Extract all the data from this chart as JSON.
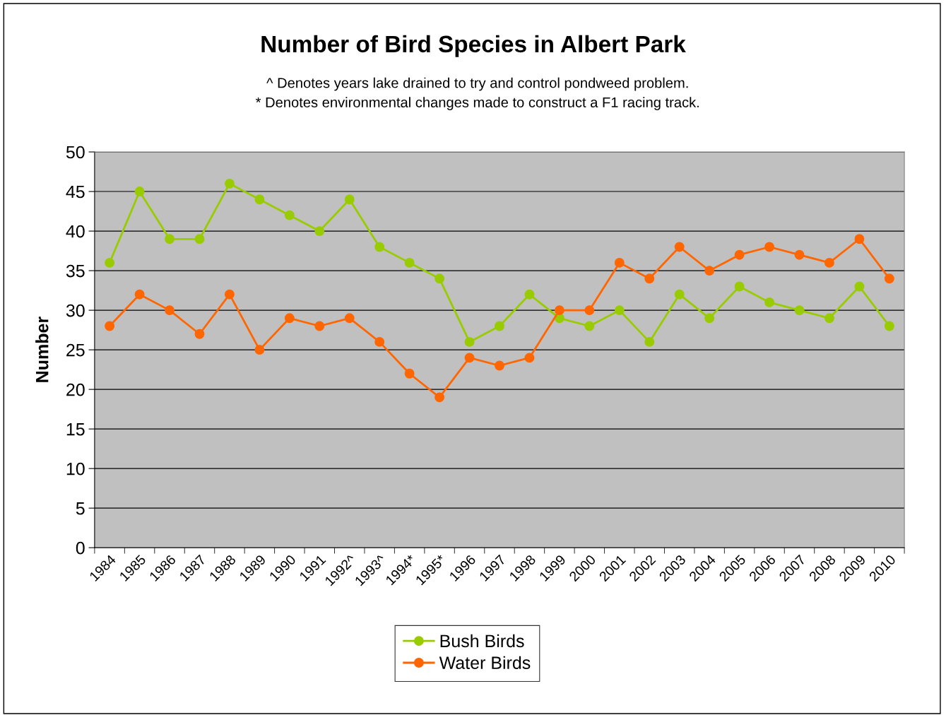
{
  "chart_data": {
    "type": "line",
    "title": "Number of Bird Species in Albert Park",
    "subtitle": "^ Denotes years lake drained to try and control pondweed problem.\n* Denotes environmental changes made to construct a F1 racing track.",
    "ylabel": "Number",
    "categories": [
      "1984",
      "1985",
      "1986",
      "1987",
      "1988",
      "1989",
      "1990",
      "1991",
      "1992^",
      "1993^",
      "1994*",
      "1995*",
      "1996",
      "1997",
      "1998",
      "1999",
      "2000",
      "2001",
      "2002",
      "2003",
      "2004",
      "2005",
      "2006",
      "2007",
      "2008",
      "2009",
      "2010"
    ],
    "series": [
      {
        "name": "Bush Birds",
        "color": "#99cc00",
        "values": [
          36,
          45,
          39,
          39,
          46,
          44,
          42,
          40,
          44,
          38,
          36,
          34,
          26,
          28,
          32,
          29,
          28,
          30,
          26,
          32,
          29,
          33,
          31,
          30,
          29,
          33,
          28
        ]
      },
      {
        "name": "Water Birds",
        "color": "#ff6600",
        "values": [
          28,
          32,
          30,
          27,
          32,
          25,
          29,
          28,
          29,
          26,
          22,
          19,
          24,
          23,
          24,
          30,
          30,
          36,
          34,
          38,
          35,
          37,
          38,
          37,
          36,
          39,
          34
        ]
      }
    ],
    "ylim": [
      0,
      50
    ],
    "yticks": [
      0,
      5,
      10,
      15,
      20,
      25,
      30,
      35,
      40,
      45,
      50
    ],
    "grid": "y",
    "legend": "bottom",
    "marker": "circle",
    "line_style": "solid"
  }
}
